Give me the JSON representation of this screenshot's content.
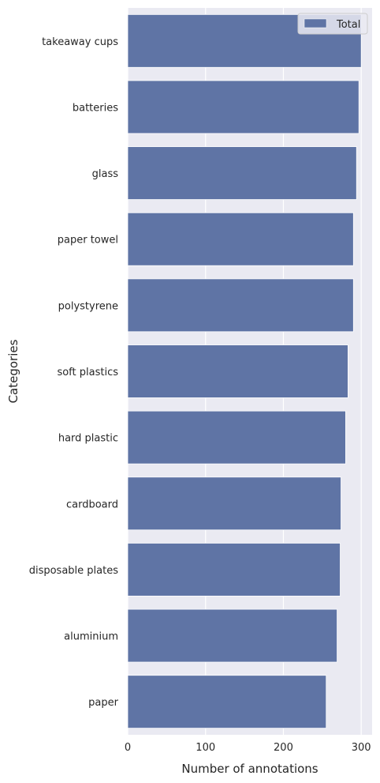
{
  "chart_data": {
    "type": "bar",
    "orientation": "horizontal",
    "categories": [
      "takeaway cups",
      "batteries",
      "glass",
      "paper towel",
      "polystyrene",
      "soft plastics",
      "hard plastic",
      "cardboard",
      "disposable plates",
      "aluminium",
      "paper"
    ],
    "series": [
      {
        "name": "Total",
        "values": [
          300,
          297,
          294,
          290,
          290,
          283,
          280,
          274,
          273,
          269,
          255
        ]
      }
    ],
    "xlabel": "Number of annotations",
    "ylabel": "Categories",
    "xticks": [
      0,
      100,
      200,
      300
    ],
    "xlim": [
      0,
      314
    ],
    "grid": true,
    "legend_position": "top-right",
    "colors": {
      "bar": "#5f74a5",
      "background": "#eaeaf2",
      "grid": "#ffffff"
    }
  }
}
